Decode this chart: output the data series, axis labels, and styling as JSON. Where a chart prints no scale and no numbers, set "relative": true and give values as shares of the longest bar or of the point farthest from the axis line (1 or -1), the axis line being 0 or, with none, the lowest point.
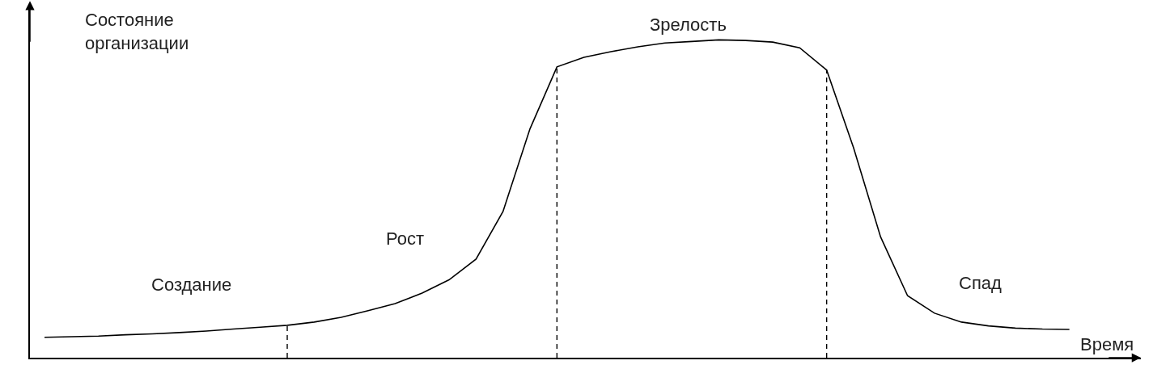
{
  "chart_data": {
    "type": "line",
    "relative": true,
    "xlabel": "Время",
    "ylabel": "Состояние организации",
    "categories": [
      null,
      null,
      null,
      null,
      null,
      null,
      null,
      null,
      null,
      null,
      null,
      null,
      null,
      null,
      null,
      null,
      null,
      null,
      null,
      null,
      null,
      null,
      null,
      null,
      null,
      null,
      null,
      null,
      null,
      null,
      null,
      null,
      null,
      null,
      null,
      null,
      null,
      null,
      null
    ],
    "series": [
      {
        "color": "#000000",
        "values": [
          0.064,
          0.066,
          0.068,
          0.072,
          0.075,
          0.079,
          0.084,
          0.09,
          0.096,
          0.102,
          0.112,
          0.127,
          0.148,
          0.17,
          0.203,
          0.245,
          0.31,
          0.46,
          0.72,
          0.915,
          0.945,
          0.963,
          0.978,
          0.99,
          0.995,
          1,
          0.998,
          0.993,
          0.975,
          0.905,
          0.66,
          0.38,
          0.195,
          0.14,
          0.112,
          0.1,
          0.093,
          0.09,
          0.089
        ]
      }
    ],
    "annotations": [
      "Создание",
      "Рост",
      "Зрелость",
      "Спад"
    ],
    "grid": false,
    "marker": "none",
    "line_style": "solid"
  }
}
